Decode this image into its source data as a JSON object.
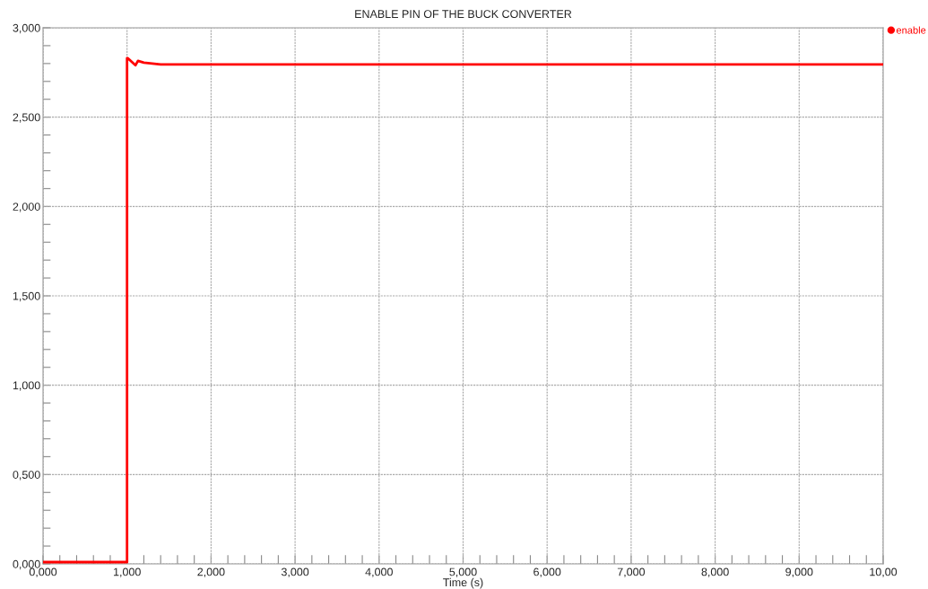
{
  "chart_data": {
    "type": "line",
    "title": "ENABLE PIN OF THE BUCK CONVERTER",
    "xlabel": "Time (s)",
    "series": [
      {
        "name": "enable",
        "color": "#ff0000",
        "x": [
          0,
          0.5,
          1.0,
          1.0,
          1.01,
          1.1,
          1.13,
          1.2,
          1.3,
          1.4,
          2,
          4,
          6,
          8,
          10
        ],
        "values": [
          0.01,
          0.01,
          0.01,
          2.83,
          2.83,
          2.79,
          2.815,
          2.805,
          2.8,
          2.795,
          2.795,
          2.795,
          2.795,
          2.795,
          2.795
        ]
      }
    ],
    "xlim": [
      0,
      10
    ],
    "ylim": [
      0,
      3
    ],
    "xticks": [
      {
        "value": 0,
        "label": "0,000"
      },
      {
        "value": 0.2,
        "label": null
      },
      {
        "value": 0.4,
        "label": null
      },
      {
        "value": 0.6,
        "label": null
      },
      {
        "value": 0.8,
        "label": null
      },
      {
        "value": 1,
        "label": "1,000"
      },
      {
        "value": 1.2,
        "label": null
      },
      {
        "value": 1.4,
        "label": null
      },
      {
        "value": 1.6,
        "label": null
      },
      {
        "value": 1.8,
        "label": null
      },
      {
        "value": 2,
        "label": "2,000"
      },
      {
        "value": 2.2,
        "label": null
      },
      {
        "value": 2.4,
        "label": null
      },
      {
        "value": 2.6,
        "label": null
      },
      {
        "value": 2.8,
        "label": null
      },
      {
        "value": 3,
        "label": "3,000"
      },
      {
        "value": 3.2,
        "label": null
      },
      {
        "value": 3.4,
        "label": null
      },
      {
        "value": 3.6,
        "label": null
      },
      {
        "value": 3.8,
        "label": null
      },
      {
        "value": 4,
        "label": "4,000"
      },
      {
        "value": 4.2,
        "label": null
      },
      {
        "value": 4.4,
        "label": null
      },
      {
        "value": 4.6,
        "label": null
      },
      {
        "value": 4.8,
        "label": null
      },
      {
        "value": 5,
        "label": "5,000"
      },
      {
        "value": 5.2,
        "label": null
      },
      {
        "value": 5.4,
        "label": null
      },
      {
        "value": 5.6,
        "label": null
      },
      {
        "value": 5.8,
        "label": null
      },
      {
        "value": 6,
        "label": "6,000"
      },
      {
        "value": 6.2,
        "label": null
      },
      {
        "value": 6.4,
        "label": null
      },
      {
        "value": 6.6,
        "label": null
      },
      {
        "value": 6.8,
        "label": null
      },
      {
        "value": 7,
        "label": "7,000"
      },
      {
        "value": 7.2,
        "label": null
      },
      {
        "value": 7.4,
        "label": null
      },
      {
        "value": 7.6,
        "label": null
      },
      {
        "value": 7.8,
        "label": null
      },
      {
        "value": 8,
        "label": "8,000"
      },
      {
        "value": 8.2,
        "label": null
      },
      {
        "value": 8.4,
        "label": null
      },
      {
        "value": 8.6,
        "label": null
      },
      {
        "value": 8.8,
        "label": null
      },
      {
        "value": 9,
        "label": "9,000"
      },
      {
        "value": 9.2,
        "label": null
      },
      {
        "value": 9.4,
        "label": null
      },
      {
        "value": 9.6,
        "label": null
      },
      {
        "value": 9.8,
        "label": null
      },
      {
        "value": 10,
        "label": "10,00"
      }
    ],
    "yticks": [
      {
        "value": 0,
        "label": "0,000"
      },
      {
        "value": 0.1,
        "label": null
      },
      {
        "value": 0.2,
        "label": null
      },
      {
        "value": 0.3,
        "label": null
      },
      {
        "value": 0.4,
        "label": null
      },
      {
        "value": 0.5,
        "label": "0,500"
      },
      {
        "value": 0.6,
        "label": null
      },
      {
        "value": 0.7,
        "label": null
      },
      {
        "value": 0.8,
        "label": null
      },
      {
        "value": 0.9,
        "label": null
      },
      {
        "value": 1.0,
        "label": "1,000"
      },
      {
        "value": 1.1,
        "label": null
      },
      {
        "value": 1.2,
        "label": null
      },
      {
        "value": 1.3,
        "label": null
      },
      {
        "value": 1.4,
        "label": null
      },
      {
        "value": 1.5,
        "label": "1,500"
      },
      {
        "value": 1.6,
        "label": null
      },
      {
        "value": 1.7,
        "label": null
      },
      {
        "value": 1.8,
        "label": null
      },
      {
        "value": 1.9,
        "label": null
      },
      {
        "value": 2.0,
        "label": "2,000"
      },
      {
        "value": 2.1,
        "label": null
      },
      {
        "value": 2.2,
        "label": null
      },
      {
        "value": 2.3,
        "label": null
      },
      {
        "value": 2.4,
        "label": null
      },
      {
        "value": 2.5,
        "label": "2,500"
      },
      {
        "value": 2.6,
        "label": null
      },
      {
        "value": 2.7,
        "label": null
      },
      {
        "value": 2.8,
        "label": null
      },
      {
        "value": 2.9,
        "label": null
      },
      {
        "value": 3.0,
        "label": "3,000"
      }
    ],
    "grid": true,
    "legend": "top right",
    "marker": "none",
    "line_style": "solid"
  }
}
